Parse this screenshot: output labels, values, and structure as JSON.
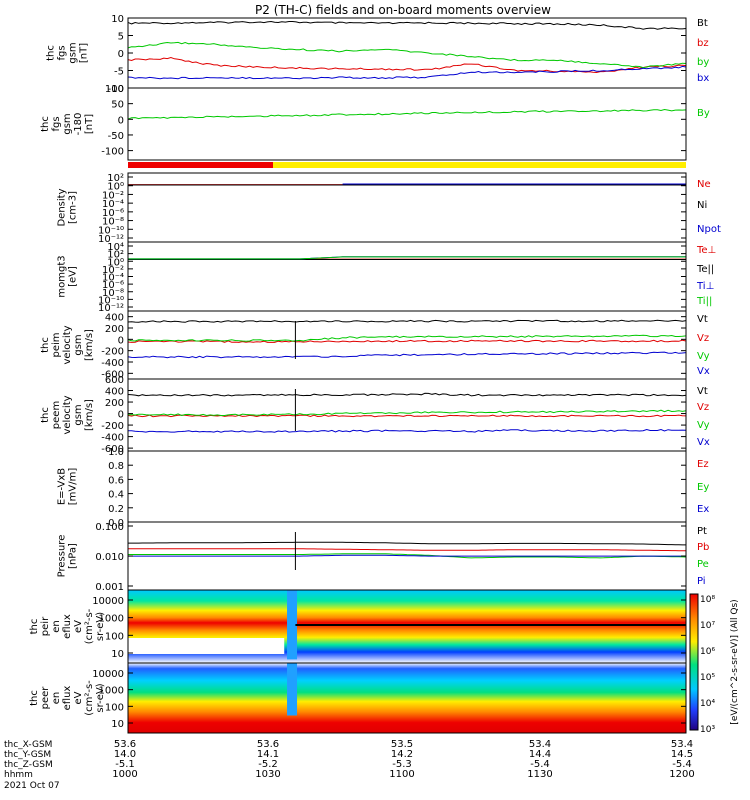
{
  "title": "P2 (TH-C) fields and on-board moments overview",
  "colors": {
    "black": "#000000",
    "red": "#e00000",
    "green": "#00c800",
    "blue": "#0000d0",
    "yellow": "#ffee00",
    "redbar": "#ee0000"
  },
  "chart_data": [
    {
      "type": "line",
      "ylabel_lines": [
        "thc",
        "fgs",
        "gsm",
        "[nT]"
      ],
      "ylim": [
        -10,
        10
      ],
      "yticks": [
        "10",
        "5",
        "0",
        "-5",
        "-10"
      ],
      "series": [
        {
          "name": "Bt",
          "color": "black",
          "y": [
            8.5,
            8.6,
            8.7,
            8.9,
            8.8,
            8.6,
            8.5,
            8.6,
            8.5,
            8.4,
            8.3,
            8.0,
            7.0,
            7.0
          ]
        },
        {
          "name": "bz",
          "color": "red",
          "y": [
            -2,
            -1.5,
            -3.5,
            -4,
            -4.3,
            -4.5,
            -4.6,
            -4.8,
            -3,
            -5,
            -5.2,
            -5.5,
            -4,
            -3.6
          ]
        },
        {
          "name": "by",
          "color": "green",
          "y": [
            1.5,
            3,
            2.5,
            1.5,
            1,
            0.5,
            1,
            0,
            -1,
            -2,
            -2,
            -3,
            -4,
            -3
          ]
        },
        {
          "name": "bx",
          "color": "blue",
          "y": [
            -7,
            -7.2,
            -7,
            -7.1,
            -7.2,
            -7,
            -7.1,
            -6.9,
            -5.5,
            -5.5,
            -5.3,
            -5,
            -4.5,
            -4
          ]
        }
      ]
    },
    {
      "type": "line",
      "ylabel_lines": [
        "thc",
        "fgs",
        "gsm",
        "-180",
        "[nT]"
      ],
      "ylim": [
        -130,
        100
      ],
      "yticks": [
        "100",
        "50",
        "0",
        "-50",
        "-100"
      ],
      "series": [
        {
          "name": "By",
          "color": "green",
          "y": [
            3,
            5,
            8,
            10,
            12,
            15,
            17,
            20,
            22,
            24,
            25,
            27,
            28,
            30
          ]
        }
      ]
    },
    {
      "type": "line",
      "ylabel_lines": [
        "Density",
        "[cm-3]"
      ],
      "log": true,
      "ylim": [
        -13,
        2
      ],
      "yticks": [
        "10²",
        "10⁰",
        "10⁻²",
        "10⁻⁴",
        "10⁻⁶",
        "10⁻⁸",
        "10⁻¹⁰",
        "10⁻¹²"
      ],
      "series": [
        {
          "name": "Ne",
          "color": "red",
          "y": [
            0.3,
            0.3,
            0.3,
            0.3,
            0.3,
            0.3,
            0.3,
            0.3,
            0.3,
            0.3,
            0.3,
            0.3,
            0.3,
            0.3
          ]
        },
        {
          "name": "Ni",
          "color": "black",
          "y": [
            0.25,
            0.25,
            0.25,
            0.25,
            0.25,
            0.25,
            0.25,
            0.25,
            0.25,
            0.25,
            0.25,
            0.25,
            0.25,
            0.25
          ]
        },
        {
          "name": "Npot",
          "color": "blue",
          "y": [
            null,
            null,
            null,
            null,
            null,
            0.4,
            0.4,
            0.4,
            0.4,
            0.4,
            0.4,
            0.4,
            0.4,
            0.4
          ]
        }
      ]
    },
    {
      "type": "line",
      "ylabel_lines": [
        "momgt3",
        "[eV]"
      ],
      "log": true,
      "ylim": [
        -13,
        4
      ],
      "yticks": [
        "10⁴",
        "10²",
        "10⁰",
        "10⁻²",
        "10⁻⁴",
        "10⁻⁶",
        "10⁻⁸",
        "10⁻¹⁰",
        "10⁻¹²"
      ],
      "series": [
        {
          "name": "Te⊥",
          "color": "red",
          "y": [
            0.6,
            0.6,
            0.6,
            0.6,
            0.6,
            0.6,
            0.6,
            0.6,
            0.6,
            0.6,
            0.6,
            0.6,
            0.6,
            0.6
          ]
        },
        {
          "name": "Te||",
          "color": "black",
          "y": [
            0.5,
            0.5,
            0.5,
            0.5,
            0.5,
            0.5,
            0.5,
            0.5,
            0.5,
            0.5,
            0.5,
            0.5,
            0.5,
            0.5
          ]
        },
        {
          "name": "Ti⊥",
          "color": "blue",
          "y": [
            0.7,
            0.7,
            0.7,
            0.7,
            0.7,
            2.2,
            2.2,
            2.2,
            2.2,
            2.2,
            2.2,
            2.2,
            2.2,
            2.2
          ]
        },
        {
          "name": "Ti||",
          "color": "green",
          "y": [
            0.7,
            0.7,
            0.7,
            0.7,
            0.7,
            2.1,
            2.1,
            2.1,
            2.1,
            2.1,
            2.1,
            2.1,
            2.1,
            2.1
          ]
        }
      ]
    },
    {
      "type": "line",
      "ylabel_lines": [
        "thc",
        "peim",
        "velocity",
        "gsm",
        "[km/s]"
      ],
      "ylim": [
        -700,
        500
      ],
      "yticks": [
        "400",
        "200",
        "0",
        "-200",
        "-400",
        "-600"
      ],
      "series": [
        {
          "name": "Vt",
          "color": "black",
          "y": [
            315,
            315,
            312,
            315,
            318,
            320,
            320,
            320,
            320,
            320,
            322,
            325,
            330,
            330
          ]
        },
        {
          "name": "Vz",
          "color": "red",
          "y": [
            -40,
            -40,
            -42,
            -40,
            -40,
            -35,
            -30,
            -30,
            -30,
            -30,
            -32,
            -30,
            -30,
            -30
          ]
        },
        {
          "name": "Vy",
          "color": "green",
          "y": [
            -20,
            -20,
            -20,
            -20,
            -20,
            30,
            40,
            45,
            50,
            50,
            55,
            55,
            60,
            60
          ]
        },
        {
          "name": "Vx",
          "color": "blue",
          "y": [
            -310,
            -310,
            -310,
            -310,
            -310,
            -300,
            -280,
            -270,
            -260,
            -255,
            -250,
            -245,
            -240,
            -235
          ]
        }
      ]
    },
    {
      "type": "line",
      "ylabel_lines": [
        "thc",
        "peem",
        "velocity",
        "gsm",
        "[km/s]"
      ],
      "ylim": [
        -650,
        600
      ],
      "yticks": [
        "600",
        "400",
        "200",
        "0",
        "-200",
        "-400",
        "-600"
      ],
      "series": [
        {
          "name": "Vt",
          "color": "black",
          "y": [
            320,
            320,
            318,
            320,
            322,
            325,
            330,
            340,
            320,
            320,
            322,
            325,
            320,
            318
          ]
        },
        {
          "name": "Vz",
          "color": "red",
          "y": [
            -40,
            -40,
            -40,
            -40,
            -40,
            -40,
            -40,
            -40,
            -40,
            -40,
            -40,
            -40,
            -40,
            -40
          ]
        },
        {
          "name": "Vy",
          "color": "green",
          "y": [
            -20,
            -20,
            -20,
            -20,
            -10,
            0,
            10,
            20,
            20,
            30,
            30,
            40,
            40,
            50
          ]
        },
        {
          "name": "Vx",
          "color": "blue",
          "y": [
            -310,
            -310,
            -310,
            -310,
            -310,
            -305,
            -300,
            -300,
            -310,
            -290,
            -300,
            -300,
            -290,
            -290
          ]
        }
      ]
    },
    {
      "type": "line",
      "ylabel_lines": [
        "E=-VxB",
        "[mV/m]"
      ],
      "ylim": [
        0,
        1
      ],
      "yticks": [
        "1.0",
        "0.8",
        "0.6",
        "0.4",
        "0.2",
        "0.0"
      ],
      "series": [
        {
          "name": "Ez",
          "color": "red",
          "y": []
        },
        {
          "name": "Ey",
          "color": "green",
          "y": []
        },
        {
          "name": "Ex",
          "color": "blue",
          "y": []
        }
      ]
    },
    {
      "type": "line",
      "ylabel_lines": [
        "Pressure",
        "[nPa]"
      ],
      "log": true,
      "ylim": [
        -3.1,
        -0.6
      ],
      "yticks": [
        "0.100",
        "0.010",
        "0.001"
      ],
      "series": [
        {
          "name": "Pt",
          "color": "black",
          "y": [
            0.042,
            0.043,
            0.043,
            0.044,
            0.045,
            0.045,
            0.043,
            0.04,
            0.04,
            0.041,
            0.041,
            0.04,
            0.039,
            0.036
          ]
        },
        {
          "name": "Pb",
          "color": "red",
          "y": [
            0.026,
            0.026,
            0.026,
            0.026,
            0.026,
            0.025,
            0.024,
            0.023,
            0.023,
            0.024,
            0.024,
            0.024,
            0.023,
            0.022
          ]
        },
        {
          "name": "Pe",
          "color": "green",
          "y": [
            0.016,
            0.016,
            0.016,
            0.016,
            0.016,
            0.017,
            0.017,
            0.015,
            0.012,
            0.013,
            0.013,
            0.012,
            0.014,
            0.013
          ]
        },
        {
          "name": "Pi",
          "color": "blue",
          "y": [
            0.014,
            0.014,
            0.014,
            0.014,
            0.014,
            0.015,
            0.015,
            0.014,
            0.014,
            0.014,
            0.014,
            0.014,
            0.014,
            0.014
          ]
        }
      ]
    },
    {
      "type": "heatmap",
      "ylabel_lines": [
        "thc",
        "peir",
        "en",
        "eflux",
        "eV",
        "(cm²-s-",
        "sr-eV)"
      ],
      "log": true,
      "ylim": [
        0.5,
        4.3
      ],
      "yticks": [
        "10000",
        "1000",
        "100",
        "10"
      ]
    },
    {
      "type": "heatmap",
      "ylabel_lines": [
        "thc",
        "peer",
        "en",
        "eflux",
        "eV",
        "(cm²-s-",
        "sr-eV)"
      ],
      "log": true,
      "ylim": [
        0.6,
        4.3
      ],
      "yticks": [
        "10000",
        "1000",
        "100",
        "10"
      ]
    }
  ],
  "colorbar": {
    "ticks": [
      "10⁸",
      "10⁷",
      "10⁶",
      "10⁵",
      "10⁴",
      "10³"
    ],
    "label": "[eV/(cm^2-s-sr-eV)] (All Qs)"
  },
  "xaxis": {
    "x_values": [
      "53.6",
      "53.6",
      "53.5",
      "53.4",
      "53.4"
    ],
    "y_values": [
      "14.0",
      "14.1",
      "14.2",
      "14.4",
      "14.5"
    ],
    "z_values": [
      "-5.1",
      "-5.2",
      "-5.3",
      "-5.4",
      "-5.4"
    ],
    "hhmm": [
      "1000",
      "1030",
      "1100",
      "1130",
      "1200"
    ]
  },
  "ephem_labels": [
    "thc_X-GSM",
    "thc_Y-GSM",
    "thc_Z-GSM",
    "hhmm"
  ],
  "date": "2021 Oct 07"
}
